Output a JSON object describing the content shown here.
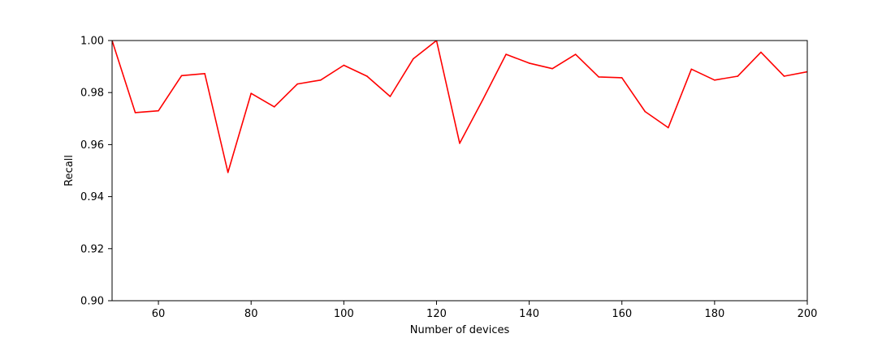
{
  "chart_data": {
    "type": "line",
    "title": "",
    "xlabel": "Number of devices",
    "ylabel": "Recall",
    "xlim": [
      50,
      200
    ],
    "ylim": [
      0.9,
      1.0
    ],
    "grid": false,
    "x_ticks": [
      60,
      80,
      100,
      120,
      140,
      160,
      180,
      200
    ],
    "y_ticks": [
      0.9,
      0.92,
      0.94,
      0.96,
      0.98,
      1.0
    ],
    "x_tick_labels": [
      "60",
      "80",
      "100",
      "120",
      "140",
      "160",
      "180",
      "200"
    ],
    "y_tick_labels": [
      "0.90",
      "0.92",
      "0.94",
      "0.96",
      "0.98",
      "1.00"
    ],
    "series": [
      {
        "color": "#ff0000",
        "x": [
          50,
          55,
          60,
          65,
          70,
          75,
          80,
          85,
          90,
          95,
          100,
          105,
          110,
          115,
          120,
          125,
          130,
          135,
          140,
          145,
          150,
          155,
          160,
          165,
          170,
          175,
          180,
          185,
          190,
          195,
          200
        ],
        "y": [
          1.0,
          0.9723,
          0.973,
          0.9865,
          0.9873,
          0.9493,
          0.9797,
          0.9745,
          0.9833,
          0.9848,
          0.9905,
          0.9863,
          0.9785,
          0.993,
          1.0,
          0.9605,
          0.9773,
          0.9947,
          0.9913,
          0.9892,
          0.9947,
          0.986,
          0.9857,
          0.9727,
          0.9665,
          0.989,
          0.9848,
          0.9863,
          0.9955,
          0.9863,
          0.988
        ]
      }
    ]
  }
}
